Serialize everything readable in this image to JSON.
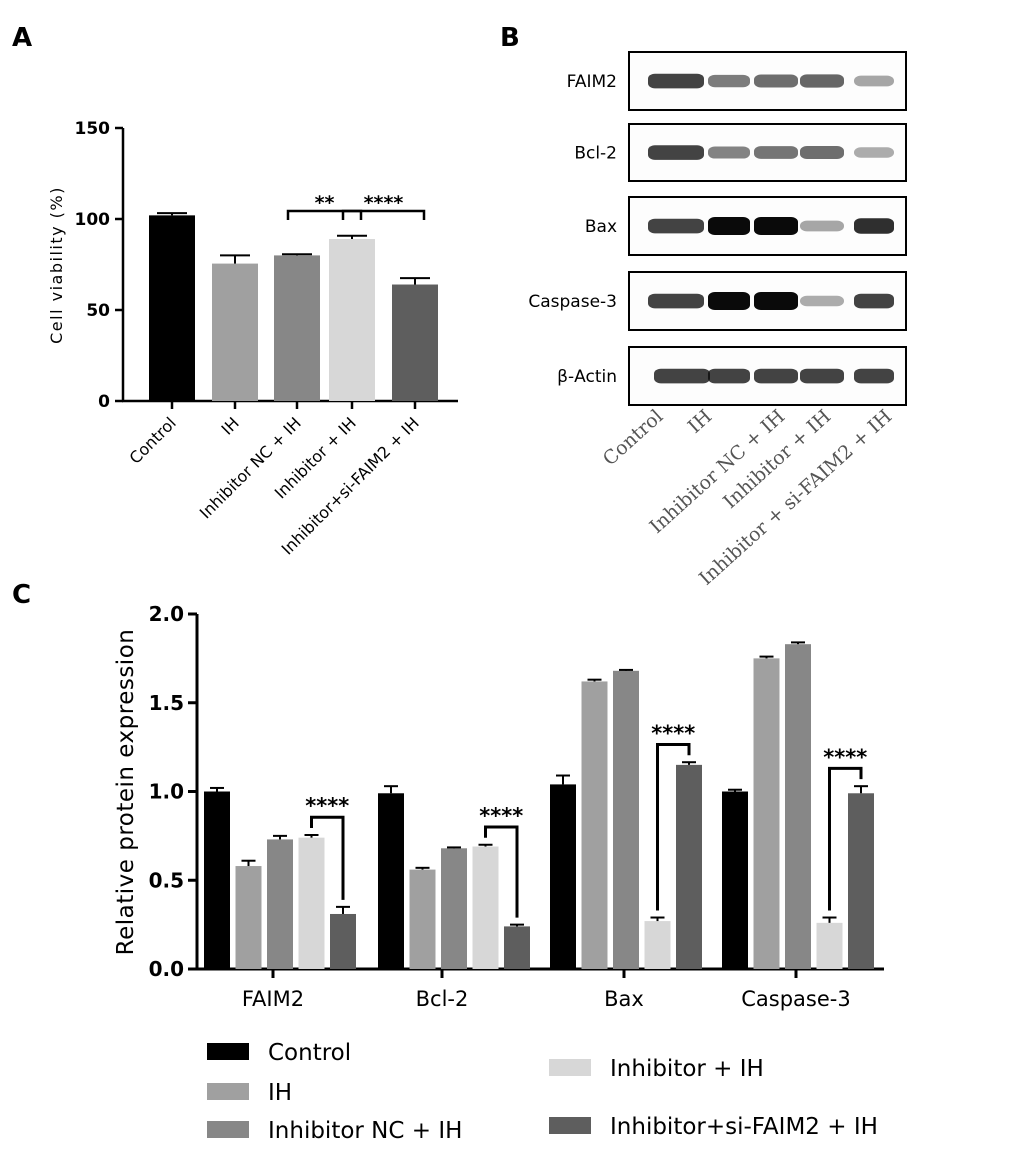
{
  "panel_a": {
    "letter": "A",
    "chart_data": {
      "type": "bar",
      "categories": [
        "Control",
        "IH",
        "Inhibitor NC + IH",
        "Inhibitor + IH",
        "Inhibitor+si-FAIM2 + IH"
      ],
      "values": [
        102,
        75.5,
        80,
        89,
        64
      ],
      "errors": [
        1.2,
        4.5,
        0.6,
        1.8,
        3.5
      ],
      "ylabel": "Cell viability (%)",
      "ylim": [
        0,
        150
      ],
      "yticks": [
        0,
        50,
        100,
        150
      ],
      "colors": [
        "#000000",
        "#a0a0a0",
        "#878787",
        "#d7d7d7",
        "#5e5e5e"
      ],
      "significance": [
        {
          "between": [
            2,
            3
          ],
          "label": "**"
        },
        {
          "between": [
            3,
            4
          ],
          "label": "****"
        }
      ]
    }
  },
  "panel_b": {
    "letter": "B",
    "proteins": [
      "FAIM2",
      "Bcl-2",
      "Bax",
      "Caspase-3",
      "β-Actin"
    ],
    "lanes": [
      "Control",
      "IH",
      "Inhibitor NC + IH",
      "Inhibitor + IH",
      "Inhibitor + si-FAIM2 + IH"
    ],
    "band_intensity": [
      [
        1.0,
        0.6,
        0.7,
        0.75,
        0.3
      ],
      [
        1.0,
        0.55,
        0.65,
        0.7,
        0.25
      ],
      [
        1.0,
        1.6,
        1.7,
        0.3,
        1.15
      ],
      [
        1.0,
        1.75,
        1.8,
        0.25,
        1.0
      ],
      [
        1.0,
        1.0,
        1.0,
        1.0,
        1.0
      ]
    ]
  },
  "panel_c": {
    "letter": "C",
    "chart_data": {
      "type": "bar",
      "categories": [
        "FAIM2",
        "Bcl-2",
        "Bax",
        "Caspase-3"
      ],
      "series": [
        {
          "name": "Control",
          "values": [
            1.0,
            0.99,
            1.04,
            1.0
          ],
          "errors": [
            0.02,
            0.04,
            0.05,
            0.01
          ],
          "color": "#000000"
        },
        {
          "name": "IH",
          "values": [
            0.58,
            0.56,
            1.62,
            1.75
          ],
          "errors": [
            0.03,
            0.01,
            0.01,
            0.01
          ],
          "color": "#a0a0a0"
        },
        {
          "name": "Inhibitor NC + IH",
          "values": [
            0.73,
            0.68,
            1.68,
            1.83
          ],
          "errors": [
            0.02,
            0.005,
            0.005,
            0.01
          ],
          "color": "#878787"
        },
        {
          "name": "Inhibitor + IH",
          "values": [
            0.74,
            0.69,
            0.27,
            0.26
          ],
          "errors": [
            0.015,
            0.01,
            0.02,
            0.03
          ],
          "color": "#d7d7d7"
        },
        {
          "name": "Inhibitor+si-FAIM2 + IH",
          "values": [
            0.31,
            0.24,
            1.15,
            0.99
          ],
          "errors": [
            0.04,
            0.01,
            0.015,
            0.04
          ],
          "color": "#5e5e5e"
        }
      ],
      "ylabel": "Relative  protein expression",
      "ylim": [
        0,
        2.0
      ],
      "yticks": [
        "0.0",
        "0.5",
        "1.0",
        "1.5",
        "2.0"
      ],
      "significance": [
        {
          "group": 0,
          "between": [
            3,
            4
          ],
          "label": "****"
        },
        {
          "group": 1,
          "between": [
            3,
            4
          ],
          "label": "****"
        },
        {
          "group": 2,
          "between": [
            3,
            4
          ],
          "label": "****"
        },
        {
          "group": 3,
          "between": [
            3,
            4
          ],
          "label": "****"
        }
      ],
      "legend_position": "bottom"
    }
  }
}
